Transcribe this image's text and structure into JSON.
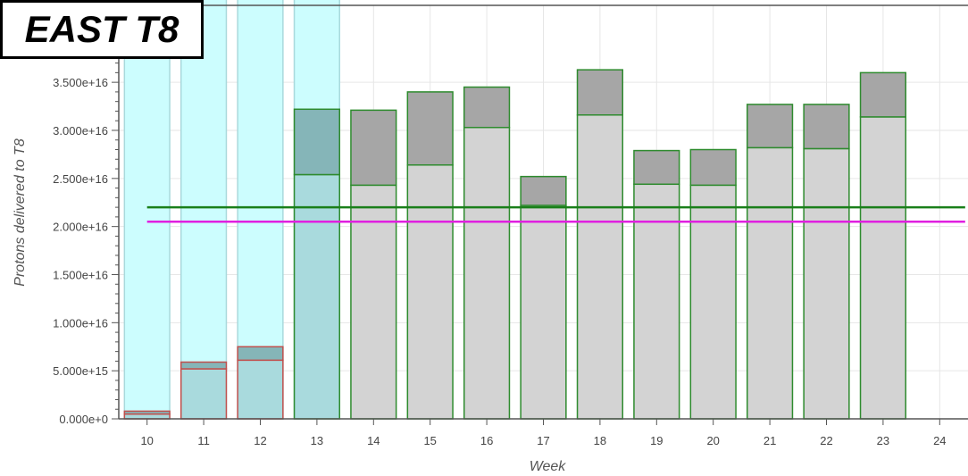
{
  "title": "EAST T8",
  "chart_data": {
    "type": "bar",
    "stacked": true,
    "xlabel": "Week",
    "ylabel": "Protons delivered to T8",
    "x_ticks": [
      10,
      11,
      12,
      13,
      14,
      15,
      16,
      17,
      18,
      19,
      20,
      21,
      22,
      23,
      24
    ],
    "y_ticks": [
      "0.000e+0",
      "5.000e+15",
      "1.000e+16",
      "1.500e+16",
      "2.000e+16",
      "2.500e+16",
      "3.000e+16",
      "3.500e+16"
    ],
    "ylim": [
      0,
      4.3e+16
    ],
    "xlim": [
      9.5,
      24.5
    ],
    "grid": true,
    "bars": [
      {
        "week": 10,
        "lower": 500000000000000.0,
        "total": 800000000000000.0,
        "potential": 4.4e+16
      },
      {
        "week": 11,
        "lower": 5200000000000000.0,
        "total": 5900000000000000.0,
        "potential": 4.4e+16
      },
      {
        "week": 12,
        "lower": 6100000000000000.0,
        "total": 7500000000000000.0,
        "potential": 4.4e+16
      },
      {
        "week": 13,
        "lower": 2.54e+16,
        "total": 3.22e+16,
        "potential": 4.4e+16
      },
      {
        "week": 14,
        "lower": 2.43e+16,
        "total": 3.21e+16
      },
      {
        "week": 15,
        "lower": 2.64e+16,
        "total": 3.4e+16
      },
      {
        "week": 16,
        "lower": 3.03e+16,
        "total": 3.45e+16
      },
      {
        "week": 17,
        "lower": 2.22e+16,
        "total": 2.52e+16
      },
      {
        "week": 18,
        "lower": 3.16e+16,
        "total": 3.63e+16
      },
      {
        "week": 19,
        "lower": 2.44e+16,
        "total": 2.79e+16
      },
      {
        "week": 20,
        "lower": 2.43e+16,
        "total": 2.8e+16
      },
      {
        "week": 21,
        "lower": 2.82e+16,
        "total": 3.27e+16
      },
      {
        "week": 22,
        "lower": 2.81e+16,
        "total": 3.27e+16
      },
      {
        "week": 23,
        "lower": 3.14e+16,
        "total": 3.6e+16
      }
    ],
    "reference_lines": [
      {
        "y": 2.2e+16,
        "color": "#1a7f1a",
        "x_from": 10,
        "x_to": 24.45
      },
      {
        "y": 2.05e+16,
        "color": "#e020e0",
        "x_from": 10,
        "x_to": 24.45
      }
    ],
    "colors": {
      "potential_fill": "#ccfdfe",
      "potential_edge": "#a9d9dc",
      "early_lower": "#a9dadd",
      "early_upper": "#85b5b8",
      "early_edge": "#c0504d",
      "lower_fill": "#d3d3d3",
      "upper_fill": "#a6a6a6",
      "edge": "#2e8b2e",
      "axis": "#555555",
      "grid": "#e6e6e6",
      "tick_text": "#444444"
    }
  }
}
